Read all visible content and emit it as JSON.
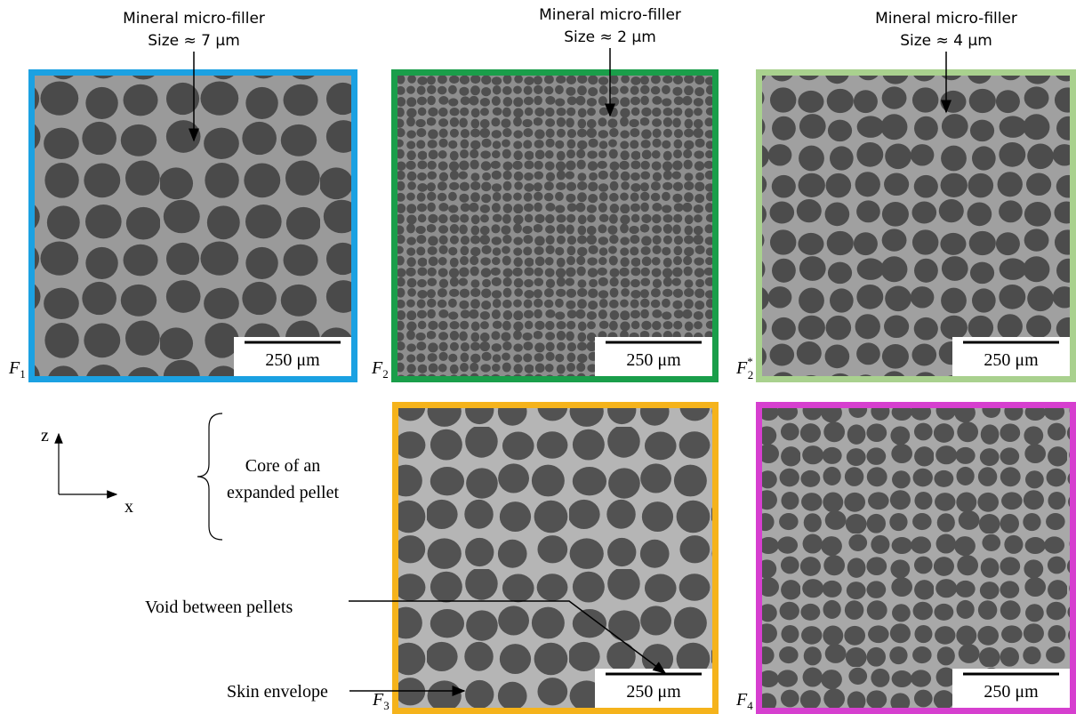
{
  "annotations_top": [
    {
      "line1": "Mineral micro-filler",
      "line2": "Size ≈ 7 μm"
    },
    {
      "line1": "Mineral micro-filler",
      "line2": "Size ≈ 2 μm"
    },
    {
      "line1": "Mineral micro-filler",
      "line2": "Size ≈ 4 μm"
    }
  ],
  "panels": [
    {
      "label": {
        "main": "F",
        "sub": "1"
      },
      "scale_bar": "250 μm",
      "border_color": "#1ba1e2"
    },
    {
      "label": {
        "main": "F",
        "sub": "2"
      },
      "scale_bar": "250 μm",
      "border_color": "#1a9e4a"
    },
    {
      "label": {
        "main": "F",
        "sub": "2",
        "sup": "*"
      },
      "scale_bar": "250 μm",
      "border_color": "#a9d18e"
    },
    {
      "label": {
        "main": "F",
        "sub": "3"
      },
      "scale_bar": "250 μm",
      "border_color": "#f5b31b"
    },
    {
      "label": {
        "main": "F",
        "sub": "4"
      },
      "scale_bar": "250 μm",
      "border_color": "#d63fcf"
    }
  ],
  "axes": {
    "z": "z",
    "x": "x"
  },
  "core_annotation": [
    "Core of an",
    "expanded pellet"
  ],
  "void_annotation": "Void between pellets",
  "skin_annotation": "Skin envelope"
}
